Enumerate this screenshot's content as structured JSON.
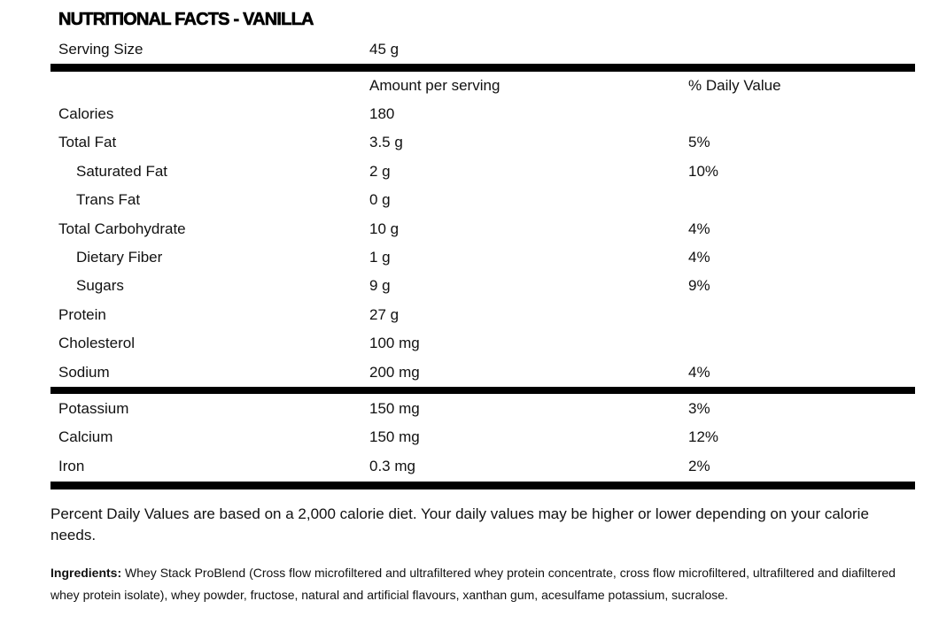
{
  "title": "NUTRITIONAL FACTS - VANILLA",
  "serving": {
    "label": "Serving Size",
    "value": "45 g"
  },
  "headers": {
    "amount": "Amount per serving",
    "daily": "% Daily Value"
  },
  "rows": [
    {
      "name": "Calories",
      "amount": "180",
      "daily": ""
    },
    {
      "name": "Total Fat",
      "amount": "3.5 g",
      "daily": "5%"
    },
    {
      "name": "Saturated Fat",
      "amount": "2 g",
      "daily": "10%"
    },
    {
      "name": "Trans Fat",
      "amount": "0 g",
      "daily": ""
    },
    {
      "name": "Total Carbohydrate",
      "amount": "10 g",
      "daily": "4%"
    },
    {
      "name": "Dietary Fiber",
      "amount": "1 g",
      "daily": "4%"
    },
    {
      "name": "Sugars",
      "amount": "9 g",
      "daily": "9%"
    },
    {
      "name": "Protein",
      "amount": "27 g",
      "daily": ""
    },
    {
      "name": "Cholesterol",
      "amount": "100 mg",
      "daily": ""
    },
    {
      "name": "Sodium",
      "amount": "200 mg",
      "daily": "4%"
    }
  ],
  "minerals": [
    {
      "name": "Potassium",
      "amount": "150 mg",
      "daily": "3%"
    },
    {
      "name": "Calcium",
      "amount": "150 mg",
      "daily": "12%"
    },
    {
      "name": "Iron",
      "amount": "0.3 mg",
      "daily": "2%"
    }
  ],
  "note": "Percent Daily Values are based on a 2,000 calorie diet. Your daily values may be higher or lower depending on your calorie needs.",
  "ingredients": {
    "label": "Ingredients:",
    "text": " Whey Stack ProBlend (Cross flow microfiltered and ultrafiltered whey protein concentrate, cross flow microfiltered, ultrafiltered and diafiltered whey protein isolate), whey powder, fructose, natural and artificial flavours, xanthan gum, acesulfame potassium, sucralose."
  }
}
